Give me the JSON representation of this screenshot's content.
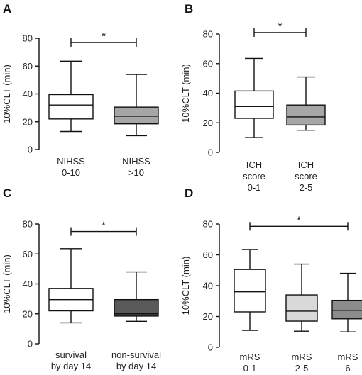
{
  "chart_data": [
    {
      "type": "boxplot",
      "panel": "A",
      "ylabel": "10%CLT (min)",
      "ylim": [
        0,
        80
      ],
      "yticks": [
        "0",
        "20",
        "40",
        "60",
        "80"
      ],
      "grid": false,
      "categories": [
        [
          "NIHSS",
          "0-10"
        ],
        [
          "NIHSS",
          ">10"
        ]
      ],
      "boxes": [
        {
          "min": 13,
          "q1": 22,
          "median": 32,
          "q3": 39.5,
          "max": 63.5,
          "fill": "#ffffff"
        },
        {
          "min": 10,
          "q1": 18.5,
          "median": 24,
          "q3": 30.5,
          "max": 54,
          "fill": "#a6a6a6"
        }
      ],
      "significance": {
        "from": 0,
        "to": 1,
        "level": 77,
        "label": "*"
      }
    },
    {
      "type": "boxplot",
      "panel": "B",
      "ylabel": "10%CLT (min)",
      "ylim": [
        0,
        80
      ],
      "yticks": [
        "0",
        "20",
        "40",
        "60",
        "80"
      ],
      "grid": false,
      "categories": [
        [
          "ICH",
          "score",
          "0-1"
        ],
        [
          "ICH",
          "score",
          "2-5"
        ]
      ],
      "boxes": [
        {
          "min": 10,
          "q1": 23,
          "median": 31,
          "q3": 41.5,
          "max": 63.5,
          "fill": "#ffffff"
        },
        {
          "min": 15,
          "q1": 18.5,
          "median": 24,
          "q3": 32,
          "max": 51,
          "fill": "#a6a6a6"
        }
      ],
      "significance": {
        "from": 0,
        "to": 1,
        "level": 81,
        "label": "*"
      }
    },
    {
      "type": "boxplot",
      "panel": "C",
      "ylabel": "10%CLT (min)",
      "ylim": [
        0,
        80
      ],
      "yticks": [
        "0",
        "20",
        "40",
        "60",
        "80"
      ],
      "grid": false,
      "categories": [
        [
          "survival",
          "by day 14"
        ],
        [
          "non-survival",
          "by day 14"
        ]
      ],
      "boxes": [
        {
          "min": 14,
          "q1": 22,
          "median": 29.5,
          "q3": 37,
          "max": 63.5,
          "fill": "#ffffff"
        },
        {
          "min": 15,
          "q1": 18.5,
          "median": 20,
          "q3": 29.5,
          "max": 48,
          "fill": "#595959"
        }
      ],
      "significance": {
        "from": 0,
        "to": 1,
        "level": 75,
        "label": "*"
      }
    },
    {
      "type": "boxplot",
      "panel": "D",
      "ylabel": "10%CLT (min)",
      "ylim": [
        0,
        80
      ],
      "yticks": [
        "0",
        "20",
        "40",
        "60",
        "80"
      ],
      "grid": false,
      "categories": [
        [
          "mRS",
          "0-1"
        ],
        [
          "mRS",
          "2-5"
        ],
        [
          "mRS",
          "6"
        ]
      ],
      "boxes": [
        {
          "min": 11,
          "q1": 23,
          "median": 36,
          "q3": 50.5,
          "max": 63.5,
          "fill": "#ffffff"
        },
        {
          "min": 10.5,
          "q1": 17,
          "median": 23.5,
          "q3": 34,
          "max": 54,
          "fill": "#d9d9d9"
        },
        {
          "min": 10,
          "q1": 18.5,
          "median": 24,
          "q3": 30.5,
          "max": 48,
          "fill": "#8c8c8c"
        }
      ],
      "significance": {
        "from": 0,
        "to": 2,
        "level": 78.5,
        "label": "*"
      }
    }
  ]
}
